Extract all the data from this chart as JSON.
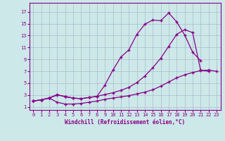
{
  "background_color": "#cce8e8",
  "grid_color": "#aabbcc",
  "line_color": "#880088",
  "xlabel": "Windchill (Refroidissement éolien,°C)",
  "ylim": [
    0.5,
    18.5
  ],
  "xlim": [
    -0.5,
    23.5
  ],
  "yticks": [
    1,
    3,
    5,
    7,
    9,
    11,
    13,
    15,
    17
  ],
  "xticks": [
    0,
    1,
    2,
    3,
    4,
    5,
    6,
    7,
    8,
    9,
    10,
    11,
    12,
    13,
    14,
    15,
    16,
    17,
    18,
    19,
    20,
    21,
    22,
    23
  ],
  "series": [
    {
      "x": [
        0,
        1,
        2,
        3,
        4,
        5,
        6,
        7,
        8,
        9,
        10,
        11,
        12,
        13,
        14,
        15,
        16,
        17,
        18,
        19,
        20,
        21
      ],
      "y": [
        2.0,
        2.2,
        2.5,
        3.0,
        2.8,
        2.5,
        2.4,
        2.6,
        2.8,
        4.7,
        7.2,
        9.4,
        10.6,
        13.2,
        14.9,
        15.6,
        15.5,
        16.8,
        15.3,
        13.1,
        10.2,
        8.8
      ]
    },
    {
      "x": [
        0,
        1,
        2,
        3,
        4,
        5,
        6,
        7,
        8,
        9,
        10,
        11,
        12,
        13,
        14,
        15,
        16,
        17,
        18,
        19,
        20,
        21,
        22
      ],
      "y": [
        2.0,
        2.2,
        2.5,
        3.1,
        2.7,
        2.5,
        2.4,
        2.6,
        2.8,
        3.1,
        3.4,
        3.8,
        4.3,
        5.1,
        6.2,
        7.6,
        9.2,
        11.2,
        13.2,
        14.0,
        13.5,
        7.2,
        7.0
      ]
    },
    {
      "x": [
        0,
        1,
        2,
        3,
        4,
        5,
        6,
        7,
        8,
        9,
        10,
        11,
        12,
        13,
        14,
        15,
        16,
        17,
        18,
        19,
        20,
        21,
        22,
        23
      ],
      "y": [
        2.0,
        2.2,
        2.5,
        1.8,
        1.5,
        1.5,
        1.6,
        1.8,
        2.0,
        2.3,
        2.5,
        2.7,
        2.9,
        3.2,
        3.5,
        3.9,
        4.5,
        5.2,
        5.9,
        6.4,
        6.8,
        7.1,
        7.2,
        7.0
      ]
    }
  ]
}
